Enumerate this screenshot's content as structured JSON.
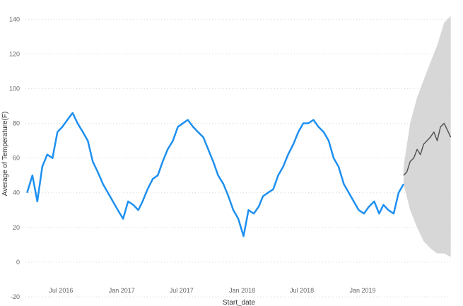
{
  "chart_data": {
    "type": "line",
    "title": "",
    "xlabel": "Start_date",
    "ylabel": "Average of Temperature(F)",
    "x_range": [
      "2016-03-15",
      "2019-09-30"
    ],
    "ylim": [
      -20,
      145
    ],
    "yticks": [
      -20,
      0,
      20,
      40,
      60,
      80,
      100,
      120,
      140
    ],
    "xticks": [
      {
        "date": "2016-07-01",
        "label": "Jul 2016"
      },
      {
        "date": "2017-01-01",
        "label": "Jan 2017"
      },
      {
        "date": "2017-07-01",
        "label": "Jul 2017"
      },
      {
        "date": "2018-01-01",
        "label": "Jan 2018"
      },
      {
        "date": "2018-07-01",
        "label": "Jul 2018"
      },
      {
        "date": "2019-01-01",
        "label": "Jan 2019"
      }
    ],
    "grid": true,
    "colors": {
      "actual": "#1E90F0",
      "forecast": "#555555",
      "band": "#d0d0d0"
    },
    "series": [
      {
        "role": "actual",
        "x": [
          "2016-03-20",
          "2016-04-05",
          "2016-04-20",
          "2016-05-05",
          "2016-05-20",
          "2016-06-05",
          "2016-06-20",
          "2016-07-05",
          "2016-07-20",
          "2016-08-05",
          "2016-08-20",
          "2016-09-05",
          "2016-09-20",
          "2016-10-05",
          "2016-10-20",
          "2016-11-05",
          "2016-11-20",
          "2016-12-05",
          "2016-12-20",
          "2017-01-05",
          "2017-01-20",
          "2017-02-05",
          "2017-02-20",
          "2017-03-05",
          "2017-03-20",
          "2017-04-05",
          "2017-04-20",
          "2017-05-05",
          "2017-05-20",
          "2017-06-05",
          "2017-06-20",
          "2017-07-05",
          "2017-07-20",
          "2017-08-05",
          "2017-08-20",
          "2017-09-05",
          "2017-09-20",
          "2017-10-05",
          "2017-10-20",
          "2017-11-05",
          "2017-11-20",
          "2017-12-05",
          "2017-12-20",
          "2018-01-05",
          "2018-01-20",
          "2018-02-05",
          "2018-02-20",
          "2018-03-05",
          "2018-03-20",
          "2018-04-05",
          "2018-04-20",
          "2018-05-05",
          "2018-05-20",
          "2018-06-05",
          "2018-06-20",
          "2018-07-05",
          "2018-07-20",
          "2018-08-05",
          "2018-08-20",
          "2018-09-05",
          "2018-09-20",
          "2018-10-05",
          "2018-10-20",
          "2018-11-05",
          "2018-11-20",
          "2018-12-05",
          "2018-12-20",
          "2019-01-05",
          "2019-01-20",
          "2019-02-05",
          "2019-02-20",
          "2019-03-05",
          "2019-03-20",
          "2019-04-05",
          "2019-04-20",
          "2019-05-05"
        ],
        "values": [
          40,
          50,
          35,
          55,
          62,
          60,
          75,
          78,
          82,
          86,
          80,
          75,
          70,
          58,
          52,
          45,
          40,
          35,
          30,
          25,
          35,
          33,
          30,
          35,
          42,
          48,
          50,
          58,
          65,
          70,
          78,
          80,
          82,
          78,
          75,
          72,
          65,
          58,
          50,
          45,
          38,
          30,
          25,
          15,
          30,
          28,
          32,
          38,
          40,
          42,
          50,
          55,
          62,
          68,
          75,
          80,
          80,
          82,
          78,
          75,
          70,
          60,
          55,
          45,
          40,
          35,
          30,
          28,
          32,
          35,
          28,
          33,
          30,
          28,
          40,
          45
        ]
      },
      {
        "role": "forecast",
        "x": [
          "2019-05-05",
          "2019-05-15",
          "2019-05-25",
          "2019-06-05",
          "2019-06-15",
          "2019-06-25",
          "2019-07-05",
          "2019-07-15",
          "2019-07-25",
          "2019-08-05",
          "2019-08-15",
          "2019-08-25",
          "2019-09-05",
          "2019-09-15",
          "2019-09-25"
        ],
        "values": [
          50,
          52,
          58,
          60,
          65,
          62,
          68,
          70,
          72,
          75,
          70,
          78,
          80,
          76,
          72
        ]
      }
    ],
    "forecast_band": {
      "x": [
        "2019-05-05",
        "2019-05-25",
        "2019-06-15",
        "2019-07-05",
        "2019-07-25",
        "2019-08-15",
        "2019-09-05",
        "2019-09-25"
      ],
      "upper": [
        55,
        80,
        95,
        105,
        115,
        125,
        138,
        142
      ],
      "lower": [
        45,
        30,
        20,
        12,
        8,
        5,
        5,
        3
      ]
    }
  }
}
